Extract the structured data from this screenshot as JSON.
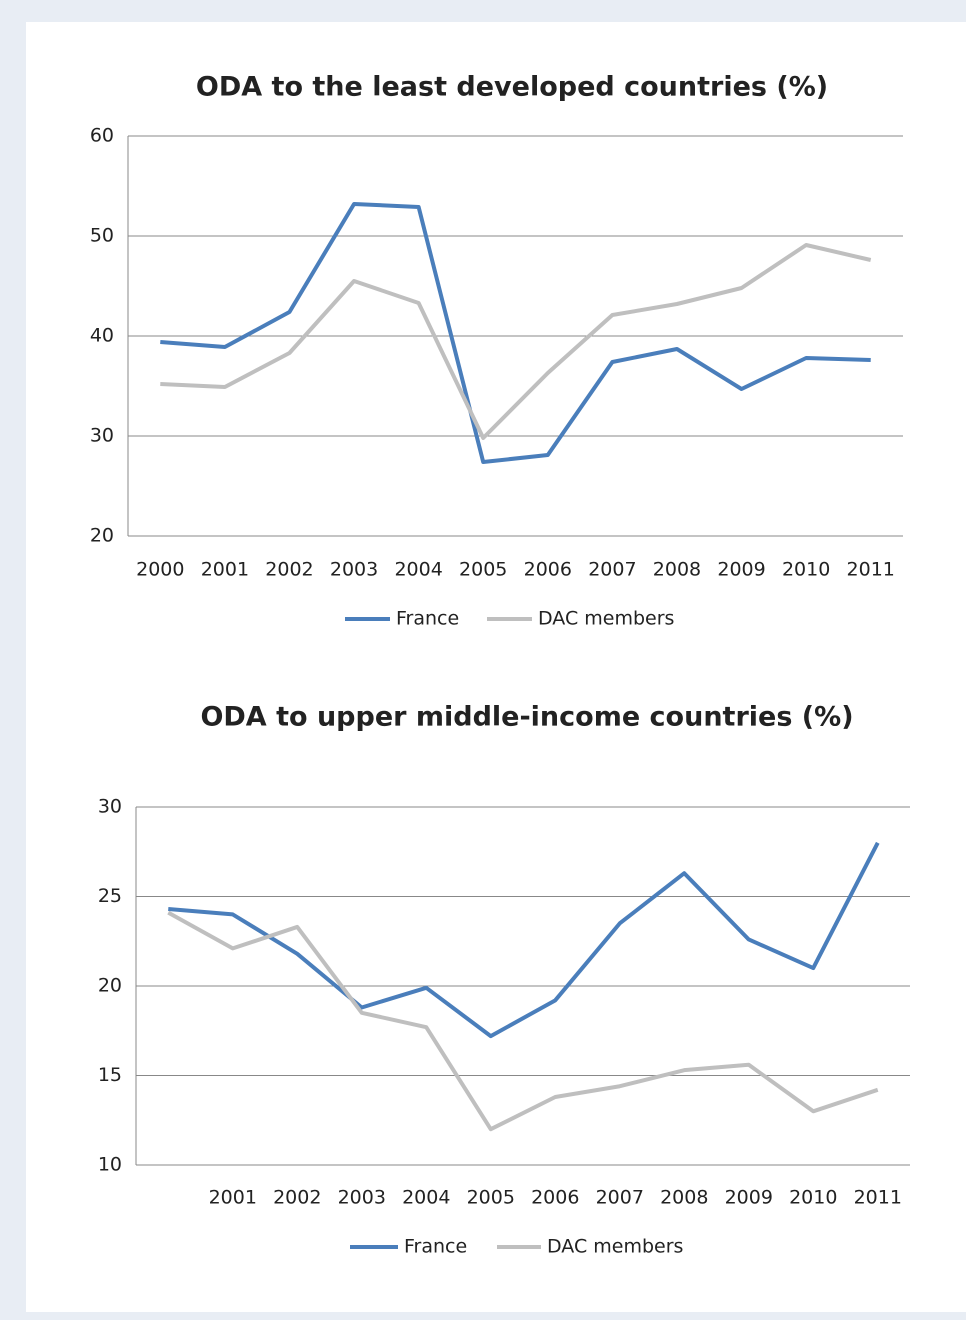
{
  "chart_data": [
    {
      "type": "line",
      "title": "ODA to the least developed countries (%)",
      "categories": [
        "2000",
        "2001",
        "2002",
        "2003",
        "2004",
        "2005",
        "2006",
        "2007",
        "2008",
        "2009",
        "2010",
        "2011"
      ],
      "series": [
        {
          "name": "France",
          "color": "#4a7ebb",
          "values": [
            39.4,
            38.9,
            42.4,
            53.2,
            52.9,
            27.4,
            28.1,
            37.4,
            38.7,
            34.7,
            37.8,
            37.6
          ]
        },
        {
          "name": "DAC members",
          "color": "#bfbfbf",
          "values": [
            35.2,
            34.9,
            38.3,
            45.5,
            43.3,
            29.8,
            36.3,
            42.1,
            43.2,
            44.8,
            49.1,
            47.6
          ]
        }
      ],
      "ylim": [
        20,
        60
      ],
      "yticks": [
        20,
        30,
        40,
        50,
        60
      ],
      "grid": true,
      "legend": "bottom"
    },
    {
      "type": "line",
      "title": "ODA to upper middle-income countries (%)",
      "categories": [
        null,
        "2001",
        "2002",
        "2003",
        "2004",
        "2005",
        "2006",
        "2007",
        "2008",
        "2009",
        "2010",
        "2011"
      ],
      "series": [
        {
          "name": "France",
          "color": "#4a7ebb",
          "values": [
            24.3,
            24.0,
            21.8,
            18.8,
            19.9,
            17.2,
            19.2,
            23.5,
            26.3,
            22.6,
            21.0,
            28.0
          ]
        },
        {
          "name": "DAC members",
          "color": "#bfbfbf",
          "values": [
            24.1,
            22.1,
            23.3,
            18.5,
            17.7,
            12.0,
            13.8,
            14.4,
            15.3,
            15.6,
            13.0,
            14.2
          ]
        }
      ],
      "ylim": [
        10,
        30
      ],
      "yticks": [
        10,
        15,
        20,
        25,
        30
      ],
      "grid": true,
      "legend": "bottom"
    }
  ]
}
